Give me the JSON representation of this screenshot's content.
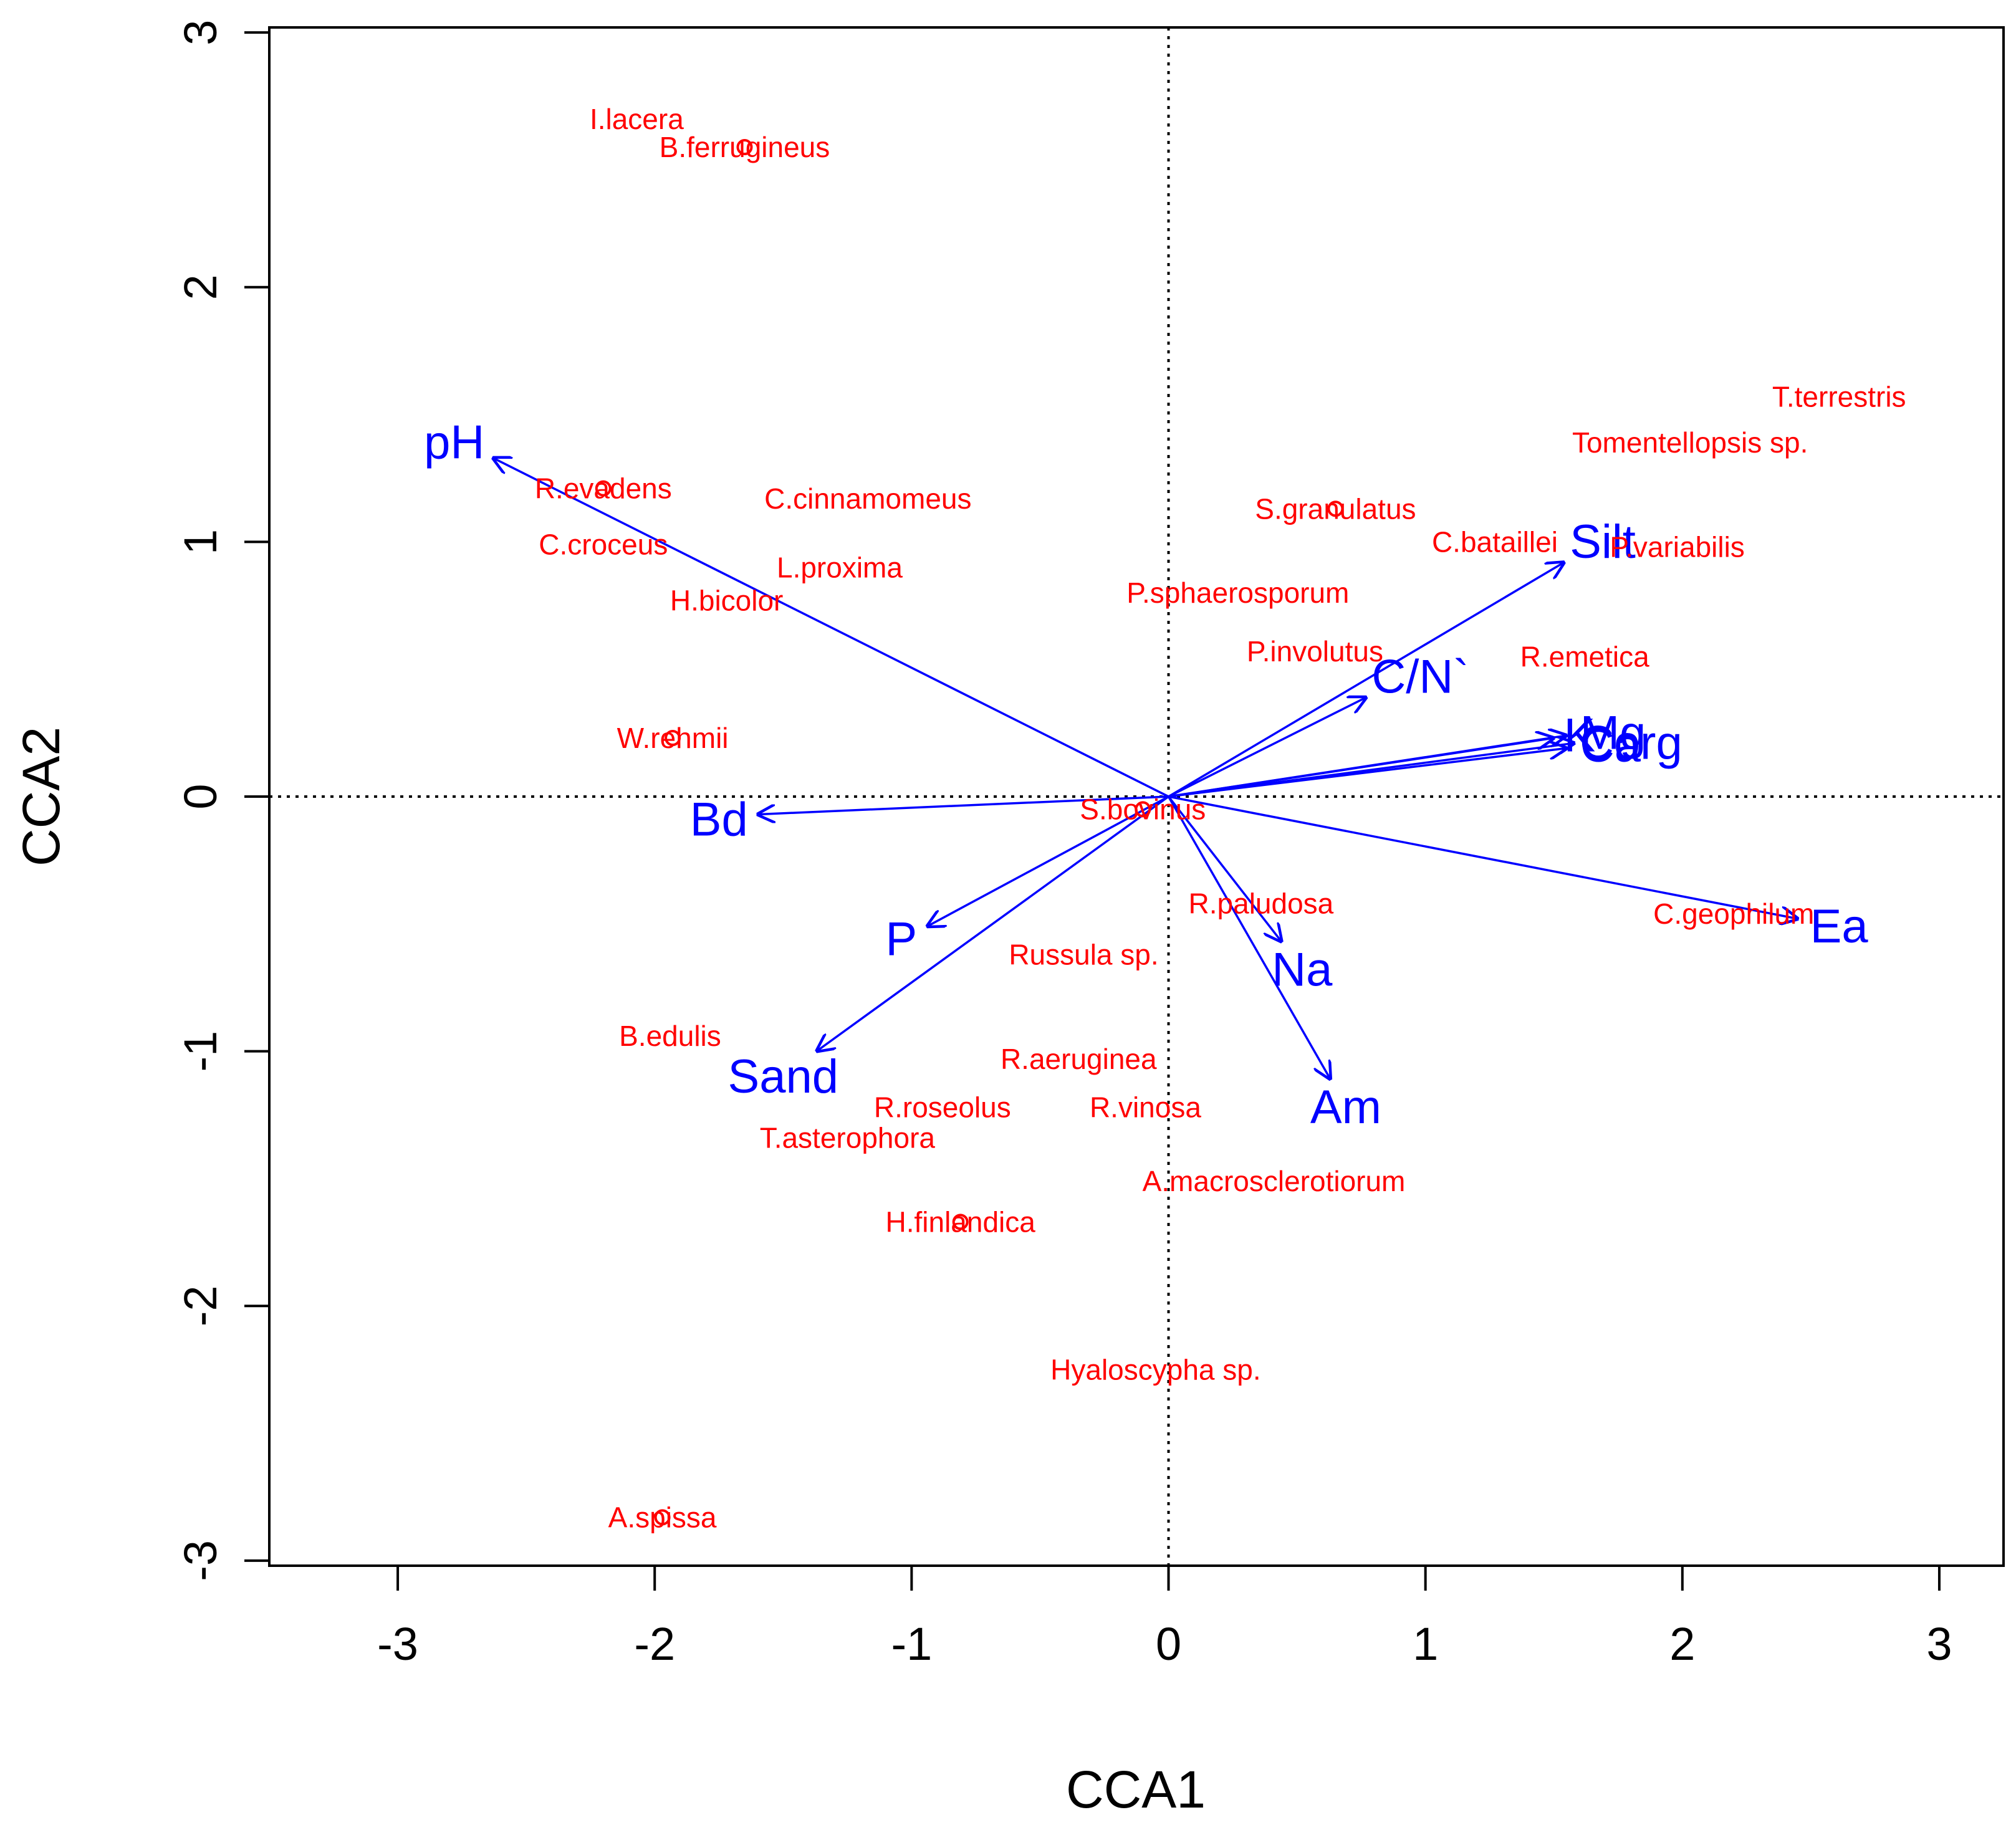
{
  "chart_data": {
    "type": "scatter",
    "subtype": "CCA triplot",
    "xlabel": "CCA1",
    "ylabel": "CCA2",
    "xlim": [
      -3.5,
      3.25
    ],
    "ylim": [
      -3.02,
      3.02
    ],
    "xticks": [
      -3,
      -2,
      -1,
      0,
      1,
      2,
      3
    ],
    "yticks": [
      -3,
      -2,
      -1,
      0,
      1,
      2,
      3
    ],
    "reference_lines": {
      "x": 0,
      "y": 0,
      "style": "dotted"
    },
    "colors": {
      "species": "#ff0000",
      "env": "#0000ff",
      "axes": "#000000"
    },
    "species": [
      {
        "name": "I.lacera",
        "x": -2.07,
        "y": 2.66,
        "point": false
      },
      {
        "name": "B.ferrugineus",
        "x": -1.65,
        "y": 2.55,
        "point": true
      },
      {
        "name": "R.evadens",
        "x": -2.2,
        "y": 1.21,
        "point": true
      },
      {
        "name": "C.cinnamomeus",
        "x": -1.17,
        "y": 1.17,
        "point": false
      },
      {
        "name": "C.croceus",
        "x": -2.2,
        "y": 0.99,
        "point": false
      },
      {
        "name": "L.proxima",
        "x": -1.28,
        "y": 0.9,
        "point": false
      },
      {
        "name": "H.bicolor",
        "x": -1.72,
        "y": 0.77,
        "point": false
      },
      {
        "name": "W.rehmii",
        "x": -1.93,
        "y": 0.23,
        "point": true
      },
      {
        "name": "S.granulatus",
        "x": 0.65,
        "y": 1.13,
        "point": true
      },
      {
        "name": "C.bataillei",
        "x": 1.27,
        "y": 1.0,
        "point": false
      },
      {
        "name": "P.variabilis",
        "x": 1.98,
        "y": 0.98,
        "point": false
      },
      {
        "name": "T.terrestris",
        "x": 2.61,
        "y": 1.57,
        "point": false
      },
      {
        "name": "Tomentellopsis sp.",
        "x": 2.03,
        "y": 1.39,
        "point": false
      },
      {
        "name": "P.sphaerosporum",
        "x": 0.27,
        "y": 0.8,
        "point": false
      },
      {
        "name": "P.involutus",
        "x": 0.57,
        "y": 0.57,
        "point": false
      },
      {
        "name": "R.emetica",
        "x": 1.62,
        "y": 0.55,
        "point": false
      },
      {
        "name": "S.bovinus",
        "x": -0.1,
        "y": -0.05,
        "point": true
      },
      {
        "name": "R.paludosa",
        "x": 0.36,
        "y": -0.42,
        "point": false
      },
      {
        "name": "C.geophilum",
        "x": 2.2,
        "y": -0.46,
        "point": false
      },
      {
        "name": "Russula sp.",
        "x": -0.33,
        "y": -0.62,
        "point": false
      },
      {
        "name": "B.edulis",
        "x": -1.94,
        "y": -0.94,
        "point": false
      },
      {
        "name": "R.aeruginea",
        "x": -0.35,
        "y": -1.03,
        "point": false
      },
      {
        "name": "R.roseolus",
        "x": -0.88,
        "y": -1.22,
        "point": false
      },
      {
        "name": "R.vinosa",
        "x": -0.09,
        "y": -1.22,
        "point": false
      },
      {
        "name": "T.asterophora",
        "x": -1.25,
        "y": -1.34,
        "point": false
      },
      {
        "name": "A.macrosclerotiorum",
        "x": 0.41,
        "y": -1.51,
        "point": false
      },
      {
        "name": "H.finlandica",
        "x": -0.81,
        "y": -1.67,
        "point": true
      },
      {
        "name": "Hyaloscypha sp.",
        "x": -0.05,
        "y": -2.25,
        "point": false
      },
      {
        "name": "A.spissa",
        "x": -1.97,
        "y": -2.83,
        "point": true
      }
    ],
    "env_vectors": [
      {
        "name": "pH",
        "x": -2.63,
        "y": 1.33,
        "label_x": -2.78,
        "label_y": 1.39
      },
      {
        "name": "Bd",
        "x": -1.6,
        "y": -0.07,
        "label_x": -1.75,
        "label_y": -0.09
      },
      {
        "name": "P",
        "x": -0.94,
        "y": -0.51,
        "label_x": -1.04,
        "label_y": -0.56
      },
      {
        "name": "Sand",
        "x": -1.37,
        "y": -1.0,
        "label_x": -1.5,
        "label_y": -1.1
      },
      {
        "name": "Na",
        "x": 0.44,
        "y": -0.57,
        "label_x": 0.52,
        "label_y": -0.68
      },
      {
        "name": "Am",
        "x": 0.63,
        "y": -1.11,
        "label_x": 0.69,
        "label_y": -1.22
      },
      {
        "name": "Ea",
        "x": 2.45,
        "y": -0.48,
        "label_x": 2.61,
        "label_y": -0.51
      },
      {
        "name": "Silt",
        "x": 1.54,
        "y": 0.92,
        "label_x": 1.69,
        "label_y": 1.0
      },
      {
        "name": "C/N`",
        "x": 0.77,
        "y": 0.39,
        "label_x": 0.98,
        "label_y": 0.47
      },
      {
        "name": "K",
        "x": 1.5,
        "y": 0.23,
        "label_x": 1.6,
        "label_y": 0.24
      },
      {
        "name": "Mg",
        "x": 1.55,
        "y": 0.24,
        "label_x": 1.73,
        "label_y": 0.25
      },
      {
        "name": "Ca",
        "x": 1.55,
        "y": 0.19,
        "label_x": 1.72,
        "label_y": 0.2
      },
      {
        "name": "Corg",
        "x": 1.58,
        "y": 0.21,
        "label_x": 1.8,
        "label_y": 0.21
      }
    ]
  }
}
